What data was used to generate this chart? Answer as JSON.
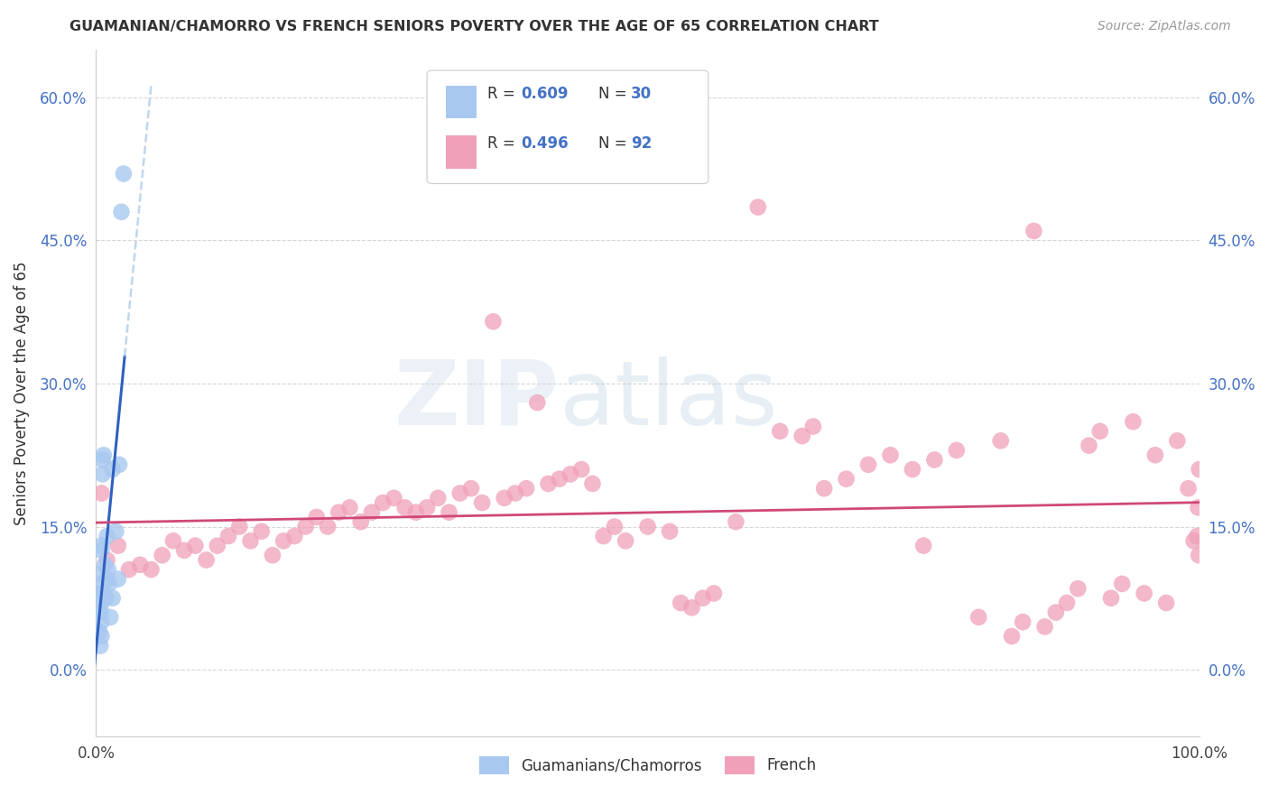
{
  "title": "GUAMANIAN/CHAMORRO VS FRENCH SENIORS POVERTY OVER THE AGE OF 65 CORRELATION CHART",
  "source": "Source: ZipAtlas.com",
  "ylabel": "Seniors Poverty Over the Age of 65",
  "ytick_values": [
    0.0,
    15.0,
    30.0,
    45.0,
    60.0
  ],
  "xlim": [
    0.0,
    100.0
  ],
  "ylim": [
    -7.0,
    65.0
  ],
  "legend_r1": "0.609",
  "legend_n1": "30",
  "legend_r2": "0.496",
  "legend_n2": "92",
  "blue_color": "#a8c8f0",
  "blue_line_color": "#3060c0",
  "blue_dash_color": "#b0cce8",
  "pink_color": "#f0a0b8",
  "pink_line_color": "#d04878",
  "label1": "Guamanians/Chamorros",
  "label2": "French",
  "watermark_zip": "ZIP",
  "watermark_atlas": "atlas",
  "blue_pts_x": [
    0.2,
    0.3,
    0.4,
    0.5,
    0.5,
    0.6,
    0.7,
    0.8,
    0.9,
    1.0,
    1.0,
    1.1,
    1.2,
    1.3,
    1.5,
    1.5,
    1.8,
    2.0,
    2.1,
    2.3,
    2.5,
    0.3,
    0.4,
    0.5,
    0.6,
    0.7,
    0.4,
    0.5,
    0.6,
    0.5
  ],
  "blue_pts_y": [
    8.0,
    10.0,
    6.5,
    9.0,
    12.5,
    22.0,
    22.5,
    11.0,
    7.5,
    9.5,
    14.0,
    10.5,
    9.0,
    5.5,
    7.5,
    21.0,
    14.5,
    9.5,
    21.5,
    48.0,
    52.0,
    4.0,
    6.0,
    3.5,
    7.5,
    8.0,
    2.5,
    13.0,
    20.5,
    5.0
  ],
  "pink_pts_x": [
    0.5,
    1.0,
    2.0,
    3.0,
    4.0,
    5.0,
    6.0,
    7.0,
    8.0,
    9.0,
    10.0,
    11.0,
    12.0,
    13.0,
    14.0,
    15.0,
    16.0,
    17.0,
    18.0,
    19.0,
    20.0,
    21.0,
    22.0,
    23.0,
    24.0,
    25.0,
    26.0,
    27.0,
    28.0,
    29.0,
    30.0,
    31.0,
    32.0,
    33.0,
    34.0,
    35.0,
    36.0,
    37.0,
    38.0,
    39.0,
    40.0,
    41.0,
    42.0,
    43.0,
    44.0,
    45.0,
    46.0,
    47.0,
    48.0,
    50.0,
    52.0,
    53.0,
    54.0,
    55.0,
    56.0,
    58.0,
    60.0,
    62.0,
    64.0,
    65.0,
    66.0,
    68.0,
    70.0,
    72.0,
    74.0,
    75.0,
    76.0,
    78.0,
    80.0,
    82.0,
    83.0,
    84.0,
    85.0,
    86.0,
    87.0,
    88.0,
    89.0,
    90.0,
    91.0,
    92.0,
    93.0,
    94.0,
    95.0,
    96.0,
    97.0,
    98.0,
    99.0,
    99.5,
    99.8,
    99.9,
    99.95,
    99.99
  ],
  "pink_pts_y": [
    18.5,
    11.5,
    13.0,
    10.5,
    11.0,
    10.5,
    12.0,
    13.5,
    12.5,
    13.0,
    11.5,
    13.0,
    14.0,
    15.0,
    13.5,
    14.5,
    12.0,
    13.5,
    14.0,
    15.0,
    16.0,
    15.0,
    16.5,
    17.0,
    15.5,
    16.5,
    17.5,
    18.0,
    17.0,
    16.5,
    17.0,
    18.0,
    16.5,
    18.5,
    19.0,
    17.5,
    36.5,
    18.0,
    18.5,
    19.0,
    28.0,
    19.5,
    20.0,
    20.5,
    21.0,
    19.5,
    14.0,
    15.0,
    13.5,
    15.0,
    14.5,
    7.0,
    6.5,
    7.5,
    8.0,
    15.5,
    48.5,
    25.0,
    24.5,
    25.5,
    19.0,
    20.0,
    21.5,
    22.5,
    21.0,
    13.0,
    22.0,
    23.0,
    5.5,
    24.0,
    3.5,
    5.0,
    46.0,
    4.5,
    6.0,
    7.0,
    8.5,
    23.5,
    25.0,
    7.5,
    9.0,
    26.0,
    8.0,
    22.5,
    7.0,
    24.0,
    19.0,
    13.5,
    14.0,
    17.0,
    12.0,
    21.0
  ]
}
